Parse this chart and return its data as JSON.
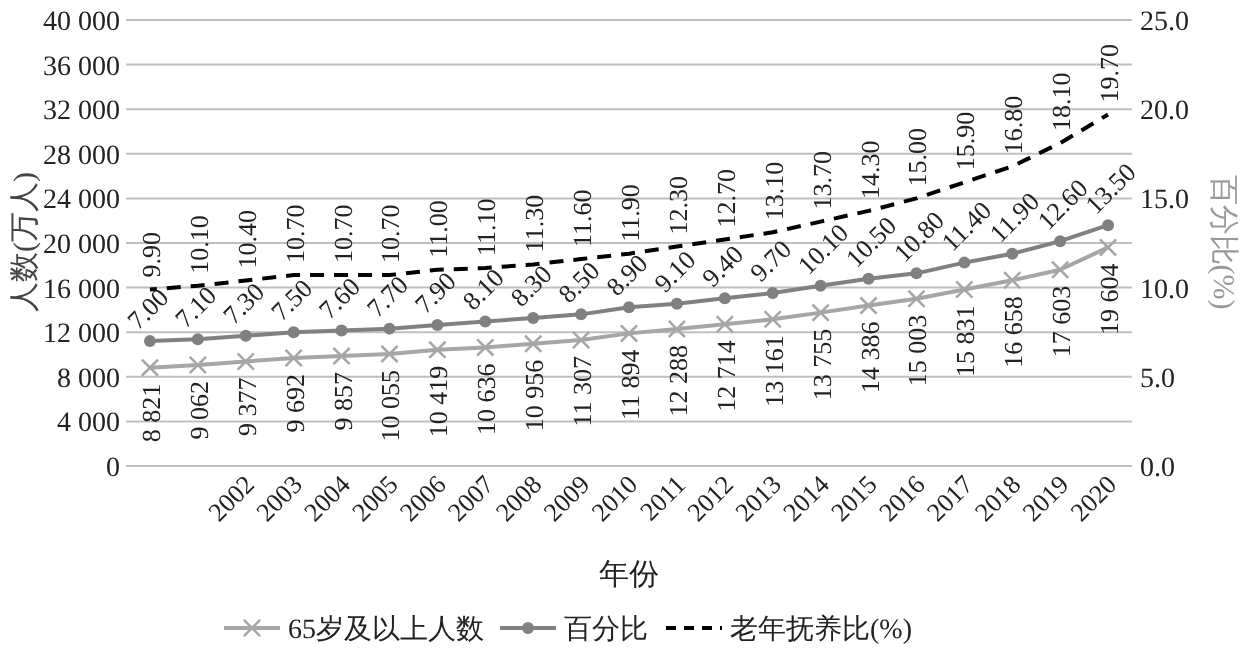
{
  "chart_data": {
    "type": "line",
    "xlabel": "年份",
    "ylabel": "人数(万人)",
    "y2label": "百分比(%)",
    "categories": [
      null,
      null,
      "2002",
      "2003",
      "2004",
      "2005",
      "2006",
      "2007",
      "2008",
      "2009",
      "2010",
      "2011",
      "2012",
      "2013",
      "2014",
      "2015",
      "2016",
      "2017",
      "2018",
      "2019",
      "2020"
    ],
    "ylim": [
      0,
      40000
    ],
    "yticks": [
      0,
      {
        "value": 4000,
        "label": "4 000"
      },
      {
        "value": 8000,
        "label": "8 000"
      },
      {
        "value": 12000,
        "label": "12 000"
      },
      {
        "value": 16000,
        "label": "16 000"
      },
      {
        "value": 20000,
        "label": "20 000"
      },
      {
        "value": 24000,
        "label": "24 000"
      },
      {
        "value": 28000,
        "label": "28 000"
      },
      {
        "value": 32000,
        "label": "32 000"
      },
      {
        "value": 36000,
        "label": "36 000"
      },
      {
        "value": 40000,
        "label": "40 000"
      }
    ],
    "y2lim": [
      0,
      25
    ],
    "y2ticks": [
      {
        "value": 0,
        "label": "0.0"
      },
      {
        "value": 5,
        "label": "5.0"
      },
      {
        "value": 10,
        "label": "10.0"
      },
      {
        "value": 15,
        "label": "15.0"
      },
      {
        "value": 20,
        "label": "20.0"
      },
      {
        "value": 25,
        "label": "25.0"
      }
    ],
    "grid": "y",
    "legend": "bottom",
    "series": [
      {
        "name": "65岁及以上人数",
        "color": "#a6a6a6",
        "marker": "cross",
        "line_style": "solid",
        "values": [
          8821,
          9062,
          9377,
          9692,
          9857,
          10055,
          10419,
          10636,
          10956,
          11307,
          11894,
          12288,
          12714,
          13161,
          13755,
          14386,
          15003,
          15831,
          16658,
          17603,
          19604
        ],
        "value_labels": [
          "8 821",
          "9 062",
          "9 377",
          "9 692",
          "9 857",
          "10 055",
          "10 419",
          "10 636",
          "10 956",
          "11 307",
          "11 894",
          "12 288",
          "12 714",
          "13 161",
          "13 755",
          "14 386",
          "15 003",
          "15 831",
          "16 658",
          "17 603",
          "19 604"
        ]
      },
      {
        "name": "百分比",
        "color": "#808080",
        "marker": "circle",
        "line_style": "solid",
        "axis": "y2",
        "values": [
          7.0,
          7.1,
          7.3,
          7.5,
          7.6,
          7.7,
          7.9,
          8.1,
          8.3,
          8.5,
          8.9,
          9.1,
          9.4,
          9.7,
          10.1,
          10.5,
          10.8,
          11.4,
          11.9,
          12.6,
          13.5
        ],
        "value_labels": [
          "7.00",
          "7.10",
          "7.30",
          "7.50",
          "7.60",
          "7.70",
          "7.90",
          "8.10",
          "8.30",
          "8.50",
          "8.90",
          "9.10",
          "9.40",
          "9.70",
          "10.10",
          "10.50",
          "10.80",
          "11.40",
          "11.90",
          "12.60",
          "13.50"
        ]
      },
      {
        "name": "老年抚养比(%)",
        "color": "#000000",
        "marker": "none",
        "line_style": "dashed",
        "axis": "y2",
        "values": [
          9.9,
          10.1,
          10.4,
          10.7,
          10.7,
          10.7,
          11.0,
          11.1,
          11.3,
          11.6,
          11.9,
          12.3,
          12.7,
          13.1,
          13.7,
          14.3,
          15.0,
          15.9,
          16.8,
          18.1,
          19.7
        ],
        "value_labels": [
          "9.90",
          "10.10",
          "10.40",
          "10.70",
          "10.70",
          "10.70",
          "11.00",
          "11.10",
          "11.30",
          "11.60",
          "11.90",
          "12.30",
          "12.70",
          "13.10",
          "13.70",
          "14.30",
          "15.00",
          "15.90",
          "16.80",
          "18.10",
          "19.70"
        ]
      }
    ]
  }
}
